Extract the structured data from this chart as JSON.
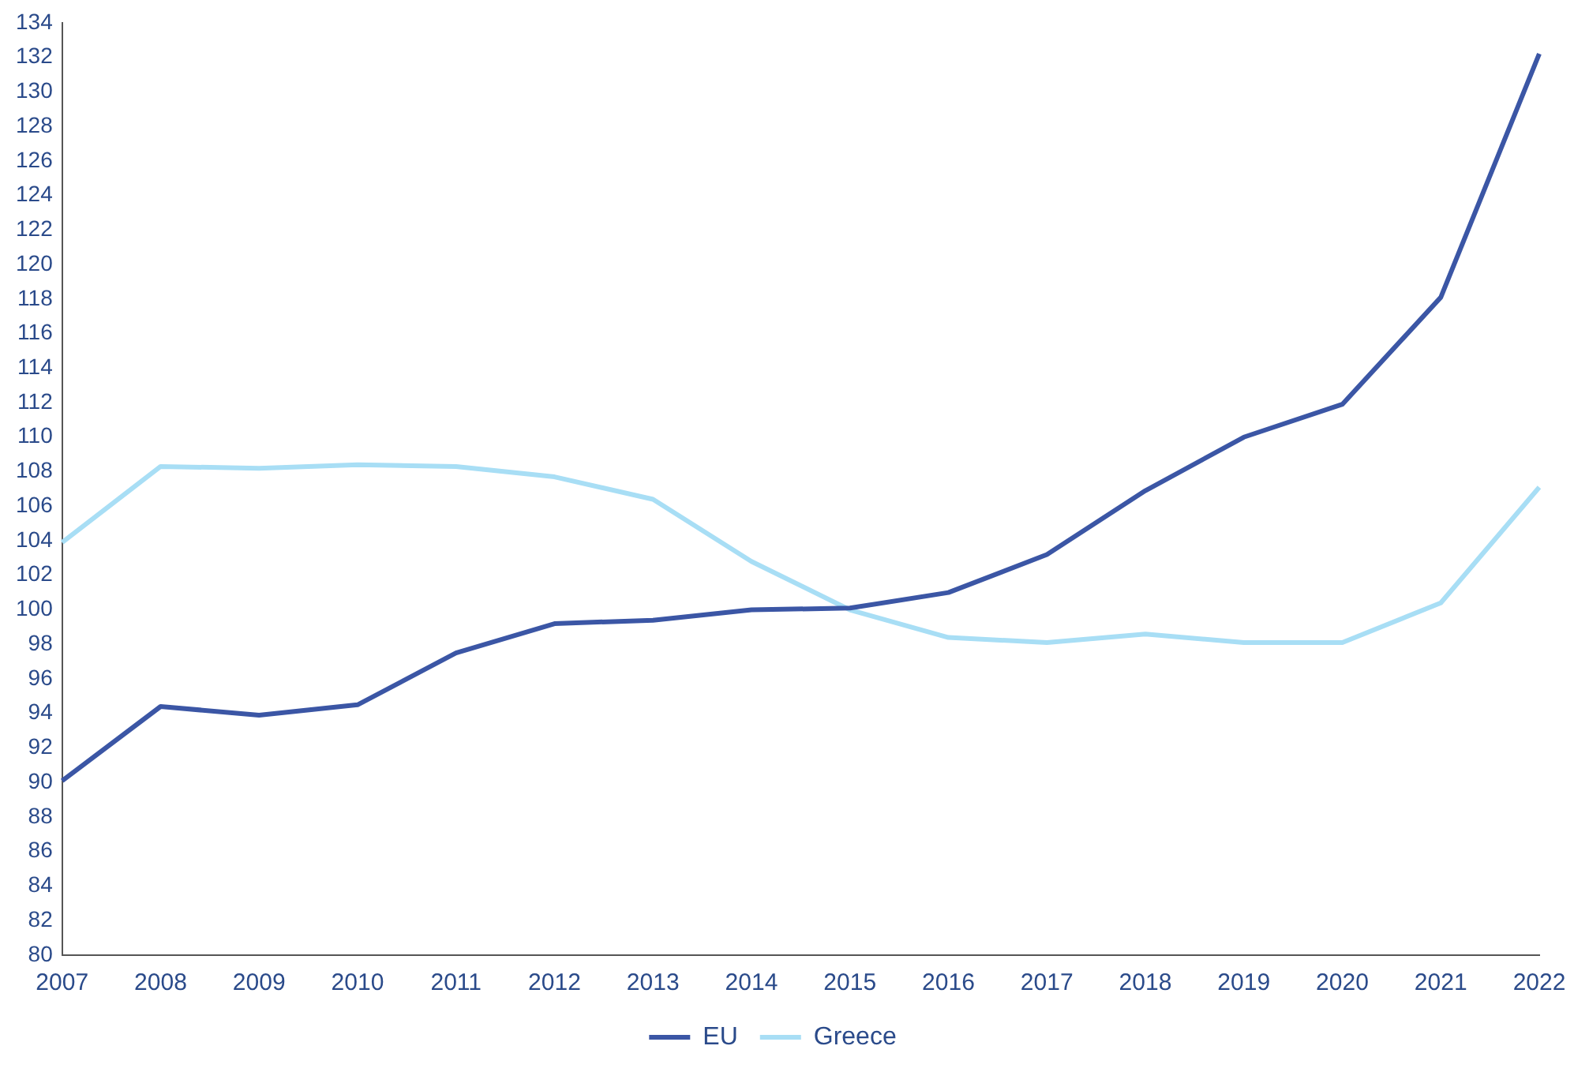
{
  "chart_data": {
    "type": "line",
    "categories": [
      "2007",
      "2008",
      "2009",
      "2010",
      "2011",
      "2012",
      "2013",
      "2014",
      "2015",
      "2016",
      "2017",
      "2018",
      "2019",
      "2020",
      "2021",
      "2022"
    ],
    "series": [
      {
        "name": "EU",
        "color": "#3b56a5",
        "values": [
          90.1,
          94.4,
          93.9,
          94.5,
          97.5,
          99.2,
          99.4,
          100.0,
          100.1,
          101.0,
          103.2,
          106.9,
          110.0,
          111.9,
          118.1,
          132.2
        ]
      },
      {
        "name": "Greece",
        "color": "#a8def5",
        "values": [
          103.9,
          108.3,
          108.2,
          108.4,
          108.3,
          107.7,
          106.4,
          102.8,
          100.0,
          98.4,
          98.1,
          98.6,
          98.1,
          98.1,
          100.4,
          107.1
        ]
      }
    ],
    "ylim": [
      80,
      134
    ],
    "yticks": [
      80,
      82,
      84,
      86,
      88,
      90,
      92,
      94,
      96,
      98,
      100,
      102,
      104,
      106,
      108,
      110,
      112,
      114,
      116,
      118,
      120,
      122,
      124,
      126,
      128,
      130,
      132,
      134
    ],
    "grid": false,
    "legend": "bottom",
    "marker": "none",
    "line_style": "solid"
  }
}
